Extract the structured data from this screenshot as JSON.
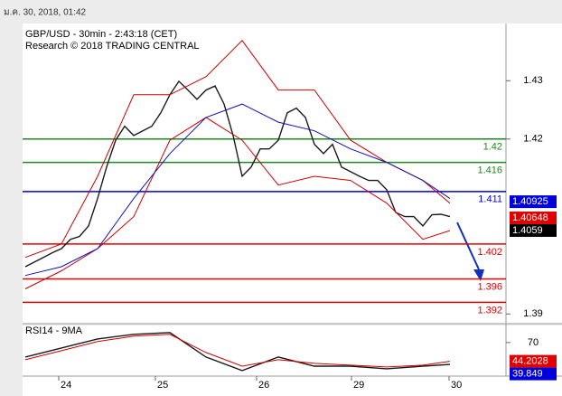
{
  "timestamp": "ม.ค. 30, 2018, 01:42",
  "chart_data": [
    {
      "type": "line",
      "title": "GBP/USD - 30min - 2:43:18 (CET)",
      "subtitle": "Research © 2018 TRADING CENTRAL",
      "xlim": [
        0,
        53.2
      ],
      "ylim": [
        1.3888,
        1.4395
      ],
      "yticks": [
        1.39,
        1.42,
        1.43
      ],
      "series": [
        {
          "color": "#1a1a1a",
          "x": [
            0,
            1,
            2,
            3,
            4,
            5,
            6,
            7,
            8,
            9,
            10,
            11,
            12,
            13,
            14,
            15,
            16,
            17,
            18,
            19,
            20,
            21,
            22,
            23,
            24,
            25,
            26,
            27,
            28,
            29,
            30,
            31,
            32,
            33,
            34,
            35,
            36,
            37,
            38,
            39,
            40,
            41,
            42,
            43,
            44,
            45,
            46,
            47
          ],
          "values": [
            1.3981,
            1.3989,
            1.3997,
            1.4005,
            1.4012,
            1.4028,
            1.4033,
            1.4051,
            1.4098,
            1.4152,
            1.4198,
            1.4222,
            1.4206,
            1.4214,
            1.4222,
            1.4245,
            1.4276,
            1.4299,
            1.4284,
            1.4268,
            1.4284,
            1.4291,
            1.426,
            1.4206,
            1.4136,
            1.4152,
            1.4183,
            1.4183,
            1.4198,
            1.4245,
            1.4253,
            1.4237,
            1.4191,
            1.4175,
            1.4191,
            1.4152,
            1.4144,
            1.4136,
            1.4129,
            1.4129,
            1.4113,
            1.4074,
            1.4067,
            1.4067,
            1.4051,
            1.407,
            1.4071,
            1.4067
          ]
        },
        {
          "color": "#d00000",
          "x": [
            0,
            4,
            8,
            12,
            16,
            20,
            24,
            28,
            32,
            36,
            40,
            44,
            47
          ],
          "values": [
            1.3997,
            1.402,
            1.4136,
            1.4276,
            1.4276,
            1.4307,
            1.4369,
            1.4284,
            1.4284,
            1.4198,
            1.416,
            1.4129,
            1.409
          ]
        },
        {
          "color": "#d00000",
          "x": [
            0,
            4,
            8,
            12,
            16,
            20,
            24,
            28,
            32,
            36,
            40,
            44,
            47
          ],
          "values": [
            1.3943,
            1.3974,
            1.4012,
            1.4067,
            1.4198,
            1.4237,
            1.4198,
            1.4121,
            1.4136,
            1.4129,
            1.409,
            1.4028,
            1.4043
          ]
        },
        {
          "color": "#1010c0",
          "x": [
            0,
            4,
            8,
            12,
            16,
            20,
            24,
            28,
            32,
            36,
            40,
            44,
            47
          ],
          "values": [
            1.3966,
            1.3981,
            1.4012,
            1.4098,
            1.4175,
            1.4237,
            1.426,
            1.4229,
            1.4214,
            1.4183,
            1.416,
            1.4129,
            1.4098
          ]
        }
      ],
      "levels": [
        1.42,
        1.416,
        1.411,
        1.402,
        1.396,
        1.392
      ],
      "level_colors": [
        "#1a8a1a",
        "#1a8a1a",
        "#0000dd",
        "#e00000",
        "#e00000",
        "#e00000"
      ],
      "price_tags": [
        1.40925,
        1.40648,
        1.4059
      ],
      "price_tag_colors": [
        "#0000dd",
        "#e00000",
        "#000000"
      ]
    },
    {
      "type": "line",
      "title": "RSI14 - 9MA",
      "xlim": [
        0,
        53.2
      ],
      "ylim": [
        25,
        96
      ],
      "yticks": [
        70
      ],
      "xticks": [
        {
          "value": 3.7,
          "label": "24"
        },
        {
          "value": 14.4,
          "label": "25"
        },
        {
          "value": 25.6,
          "label": "26"
        },
        {
          "value": 36.1,
          "label": "29"
        },
        {
          "value": 46.9,
          "label": "30"
        }
      ],
      "series": [
        {
          "color": "#1a1a1a",
          "x": [
            0,
            4,
            8,
            12,
            16,
            20,
            24,
            28,
            32,
            36,
            40,
            44,
            47
          ],
          "values": [
            50,
            62.5,
            75,
            81.3,
            83.8,
            50,
            31.3,
            50,
            37.5,
            37.5,
            33.8,
            37.5,
            39.8
          ]
        },
        {
          "color": "#d00000",
          "x": [
            0,
            4,
            8,
            12,
            16,
            20,
            24,
            28,
            32,
            36,
            40,
            44,
            47
          ],
          "values": [
            46.3,
            58.8,
            71.3,
            78.8,
            81.3,
            56.3,
            37.5,
            46.3,
            41.3,
            38.8,
            36.3,
            38.8,
            44.2
          ]
        }
      ],
      "price_tags": [
        44.2028,
        39.849
      ],
      "price_tag_colors": [
        "#e00000",
        "#0000dd"
      ]
    }
  ]
}
